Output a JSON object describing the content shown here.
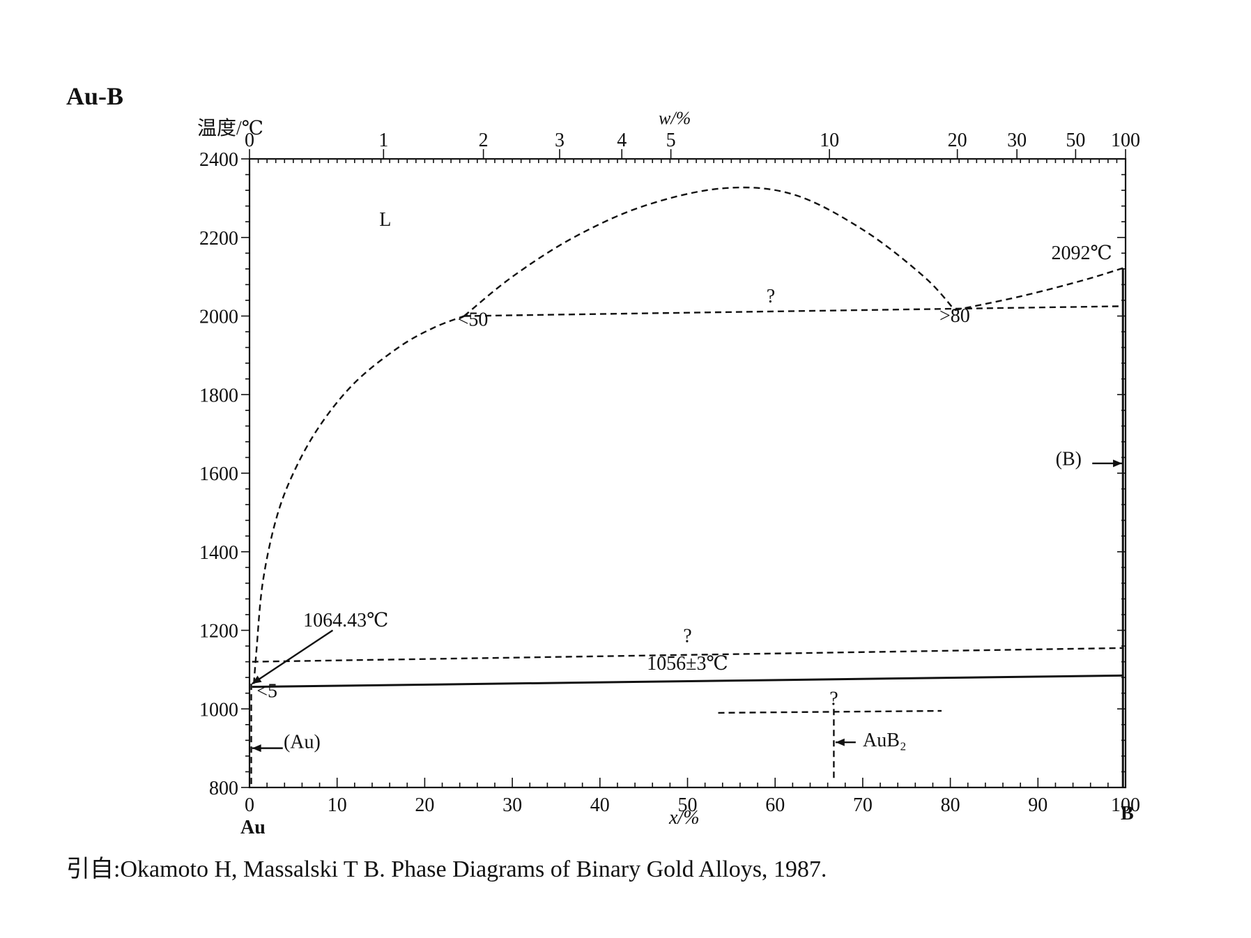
{
  "chart_data": {
    "type": "line",
    "system": "Au-B",
    "ylabel": "温度/℃",
    "xlabel": "x/%",
    "top_xlabel": "w/%",
    "ylim": [
      800,
      2400
    ],
    "xlim": [
      0,
      100
    ],
    "yticks": [
      800,
      1000,
      1200,
      1400,
      1600,
      1800,
      2000,
      2200,
      2400
    ],
    "xticks": [
      0,
      10,
      20,
      30,
      40,
      50,
      60,
      70,
      80,
      90,
      100
    ],
    "top_ticks": [
      {
        "w": 0,
        "x": 0
      },
      {
        "w": 1,
        "x": 15.3
      },
      {
        "w": 2,
        "x": 26.7
      },
      {
        "w": 3,
        "x": 35.4
      },
      {
        "w": 4,
        "x": 42.5
      },
      {
        "w": 5,
        "x": 48.1
      },
      {
        "w": 10,
        "x": 66.2
      },
      {
        "w": 20,
        "x": 80.8
      },
      {
        "w": 30,
        "x": 87.6
      },
      {
        "w": 50,
        "x": 94.3
      },
      {
        "w": 100,
        "x": 100
      }
    ],
    "x_end_labels": {
      "left": "Au",
      "right": "B"
    },
    "grid": false,
    "series": [
      {
        "style": "dashed",
        "points": [
          [
            0.5,
            1064
          ],
          [
            0.8,
            1150
          ],
          [
            1.5,
            1320
          ],
          [
            3,
            1480
          ],
          [
            5,
            1600
          ],
          [
            8,
            1720
          ],
          [
            12,
            1830
          ],
          [
            17,
            1920
          ],
          [
            21,
            1970
          ],
          [
            24.5,
            2000
          ]
        ]
      },
      {
        "style": "dashed",
        "points": [
          [
            24.5,
            2000
          ],
          [
            30,
            2100
          ],
          [
            37,
            2200
          ],
          [
            45,
            2280
          ],
          [
            54,
            2325
          ],
          [
            62,
            2310
          ],
          [
            70,
            2220
          ],
          [
            77,
            2100
          ],
          [
            80.5,
            2015
          ]
        ]
      },
      {
        "style": "dashed",
        "points": [
          [
            80.5,
            2015
          ],
          [
            88,
            2050
          ],
          [
            95,
            2090
          ],
          [
            99.7,
            2122
          ]
        ]
      },
      {
        "style": "dashed",
        "points": [
          [
            24.5,
            2000
          ],
          [
            99.7,
            2025
          ]
        ]
      },
      {
        "style": "dashed",
        "points": [
          [
            0.3,
            1120
          ],
          [
            99.7,
            1155
          ]
        ]
      },
      {
        "style": "solid",
        "points": [
          [
            0.3,
            1056
          ],
          [
            99.7,
            1085
          ]
        ]
      },
      {
        "style": "dashed",
        "points": [
          [
            53.5,
            990
          ],
          [
            79,
            995
          ]
        ]
      },
      {
        "style": "dashed",
        "points": [
          [
            66.7,
            1000
          ],
          [
            66.7,
            818
          ]
        ]
      },
      {
        "style": "dashed",
        "points": [
          [
            0.2,
            1064
          ],
          [
            0.2,
            800
          ]
        ]
      },
      {
        "style": "solid",
        "points": [
          [
            99.7,
            2122
          ],
          [
            99.7,
            800
          ]
        ]
      }
    ],
    "annotations": [
      {
        "text": "L",
        "x": 15.5,
        "y": 2230
      },
      {
        "text": "2092℃",
        "x": 95,
        "y": 2145
      },
      {
        "text": "?",
        "x": 59.5,
        "y": 2035
      },
      {
        "text": "<50",
        "x": 25.5,
        "y": 1975
      },
      {
        "text": ">80",
        "x": 80.5,
        "y": 1985
      },
      {
        "text": "(B)",
        "x": 93.5,
        "y": 1620
      },
      {
        "text": "1064.43℃",
        "x": 11,
        "y": 1210
      },
      {
        "text": "?",
        "x": 50,
        "y": 1170
      },
      {
        "text": "1056±3℃",
        "x": 50,
        "y": 1100
      },
      {
        "text": "<5",
        "x": 2,
        "y": 1030
      },
      {
        "text": "?",
        "x": 66.7,
        "y": 1010
      },
      {
        "text": "AuB₂",
        "x": 72.5,
        "y": 905
      },
      {
        "text": "(Au)",
        "x": 6,
        "y": 900
      }
    ]
  },
  "diagram_title": "Au-B",
  "citation": "引自:Okamoto H, Massalski T B. Phase Diagrams of Binary Gold Alloys, 1987."
}
